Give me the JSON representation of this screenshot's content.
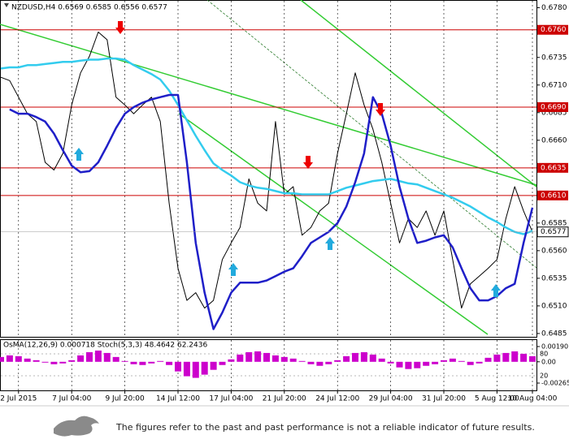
{
  "chart_data": [
    {
      "type": "line",
      "title": "NZDUSD,H4 0.6569 0.6585 0.6556 0.6577",
      "categories": [
        null,
        null,
        "2 Jul 2015",
        null,
        null,
        null,
        null,
        null,
        "7 Jul 04:00",
        null,
        null,
        null,
        null,
        null,
        "9 Jul 20:00",
        null,
        null,
        null,
        null,
        null,
        "14 Jul 12:00",
        null,
        null,
        null,
        null,
        null,
        "17 Jul 04:00",
        null,
        null,
        null,
        null,
        null,
        "21 Jul 20:00",
        null,
        null,
        null,
        null,
        null,
        "24 Jul 12:00",
        null,
        null,
        null,
        null,
        null,
        "29 Jul 04:00",
        null,
        null,
        null,
        null,
        null,
        "31 Jul 20:00",
        null,
        null,
        null,
        null,
        null,
        "5 Aug 12:00",
        null,
        null,
        null,
        "10 Aug 04:00"
      ],
      "series": [
        {
          "color": "#000000",
          "values": [
            0.6717,
            0.6714,
            0.6699,
            0.6684,
            0.6677,
            0.664,
            0.6633,
            0.6648,
            0.6692,
            0.6721,
            0.6736,
            0.6758,
            0.6751,
            0.6699,
            0.6692,
            0.6684,
            0.6692,
            0.6699,
            0.6677,
            0.6603,
            0.6544,
            0.6515,
            0.6522,
            0.6508,
            0.6515,
            0.6552,
            0.6567,
            0.6581,
            0.6625,
            0.6603,
            0.6596,
            0.6677,
            0.6611,
            0.6618,
            0.6574,
            0.6581,
            0.6596,
            0.6603,
            0.6648,
            0.6684,
            0.6721,
            0.6692,
            0.667,
            0.664,
            0.6603,
            0.6567,
            0.6589,
            0.6581,
            0.6596,
            0.6574,
            0.6596,
            0.6552,
            0.6508,
            0.653,
            0.6537,
            0.6544,
            0.6552,
            0.6589,
            0.6618,
            0.6596,
            0.6577
          ]
        },
        {
          "color": "#33ccee",
          "values": [
            0.6725,
            0.6726,
            0.6726,
            0.6728,
            0.6728,
            0.6729,
            0.673,
            0.6731,
            0.6731,
            0.6732,
            0.6733,
            0.6733,
            0.6734,
            0.6734,
            0.6733,
            0.6728,
            0.6724,
            0.672,
            0.6715,
            0.6705,
            0.6692,
            0.6678,
            0.6664,
            0.6651,
            0.6639,
            0.6633,
            0.6628,
            0.6622,
            0.6619,
            0.6617,
            0.6616,
            0.6614,
            0.6612,
            0.6612,
            0.6611,
            0.6611,
            0.6611,
            0.6611,
            0.6614,
            0.6617,
            0.6619,
            0.6621,
            0.6623,
            0.6624,
            0.6625,
            0.6623,
            0.6621,
            0.662,
            0.6617,
            0.6614,
            0.6611,
            0.6608,
            0.6604,
            0.66,
            0.6595,
            0.659,
            0.6586,
            0.6581,
            0.6577,
            0.6575,
            0.6578
          ]
        },
        {
          "color": "#1f1fc8",
          "values": [
            null,
            0.6688,
            0.6684,
            0.6684,
            0.6681,
            0.6677,
            0.6666,
            0.6651,
            0.6637,
            0.6631,
            0.6632,
            0.664,
            0.6655,
            0.6671,
            0.6684,
            0.669,
            0.6694,
            0.6697,
            0.6699,
            0.6701,
            0.6701,
            0.664,
            0.6567,
            0.6522,
            0.6489,
            0.6504,
            0.6522,
            0.6531,
            0.6531,
            0.6531,
            0.6533,
            0.6537,
            0.6541,
            0.6544,
            0.6555,
            0.6567,
            0.6572,
            0.6577,
            0.6585,
            0.66,
            0.6622,
            0.6648,
            0.6699,
            0.6684,
            0.6655,
            0.6618,
            0.6589,
            0.6567,
            0.6569,
            0.6572,
            0.6574,
            0.6563,
            0.6544,
            0.6526,
            0.6515,
            0.6515,
            0.6519,
            0.6526,
            0.653,
            0.6567,
            0.6599
          ]
        }
      ],
      "ylim": [
        0.6482,
        0.6787
      ],
      "yticks": [
        {
          "value": 0.678,
          "label": "0.6780"
        },
        {
          "value": 0.6735,
          "label": "0.6735"
        },
        {
          "value": 0.671,
          "label": "0.6710"
        },
        {
          "value": 0.6685,
          "label": "0.6685"
        },
        {
          "value": 0.666,
          "label": "0.6660"
        },
        {
          "value": 0.6585,
          "label": "0.6585"
        },
        {
          "value": 0.656,
          "label": "0.6560"
        },
        {
          "value": 0.6535,
          "label": "0.6535"
        },
        {
          "value": 0.651,
          "label": "0.6510"
        },
        {
          "value": 0.6485,
          "label": "0.6485"
        }
      ],
      "levels": [
        {
          "value": 0.676,
          "label": "0.6760"
        },
        {
          "value": 0.669,
          "label": "0.6690"
        },
        {
          "value": 0.6635,
          "label": "0.6635"
        },
        {
          "value": 0.661,
          "label": "0.6610"
        }
      ],
      "level_color": "#cc0000",
      "last_price": {
        "value": 0.6577,
        "label": "0.6577"
      },
      "grid": true
    },
    {
      "type": "bar",
      "title": "OsMA(12,26,9) 0.000718 Stoch(5,3,3) 48.4642 62.2436",
      "color": "#cc00cc",
      "values": [
        0.0006,
        0.0008,
        0.0007,
        0.0004,
        0.0002,
        -0.0001,
        -0.0003,
        -0.0002,
        0.0002,
        0.0008,
        0.0012,
        0.0014,
        0.0011,
        0.0006,
        0.0001,
        -0.0003,
        -0.0004,
        -0.0002,
        0.0001,
        -0.0004,
        -0.0012,
        -0.0018,
        -0.002,
        -0.0016,
        -0.001,
        -0.0004,
        0.0003,
        0.0009,
        0.0012,
        0.0013,
        0.0011,
        0.0008,
        0.0006,
        0.0004,
        0.0001,
        -0.0003,
        -0.0005,
        -0.0003,
        0.0002,
        0.0007,
        0.0011,
        0.0012,
        0.0009,
        0.0004,
        -0.0002,
        -0.0007,
        -0.0009,
        -0.0008,
        -0.0005,
        -0.0003,
        0.0002,
        0.0004,
        0.0001,
        -0.0004,
        -0.0002,
        0.0005,
        0.0009,
        0.0011,
        0.0013,
        0.001,
        0.0007
      ],
      "ylim": [
        -0.00265,
        0.0019
      ],
      "yticks": [
        {
          "value": 0.0019,
          "label": "0.00190"
        },
        {
          "value": 0,
          "label": "0.00"
        },
        -0.00265
      ],
      "y2lim": [
        0,
        100
      ],
      "y2ticks": [
        80,
        20
      ]
    }
  ],
  "footer": {
    "text": "The figures refer to the past and past performance is not a reliable indicator of future results."
  }
}
